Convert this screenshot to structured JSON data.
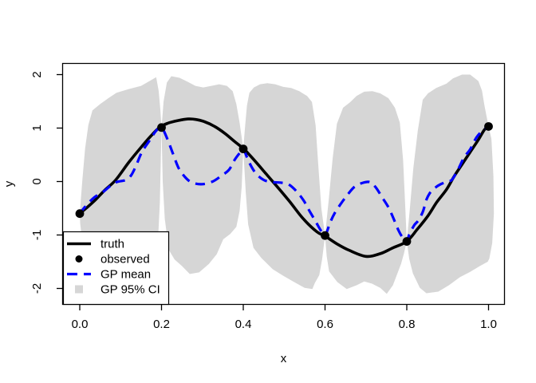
{
  "chart_data": {
    "type": "line",
    "title": "",
    "xlabel": "x",
    "ylabel": "y",
    "xlim": [
      -0.043,
      1.039
    ],
    "ylim": [
      -2.31,
      2.22
    ],
    "grid": false,
    "box": true,
    "x_ticks": {
      "values": [
        0.0,
        0.2,
        0.4,
        0.6,
        0.8,
        1.0
      ],
      "labels": [
        "0.0",
        "0.2",
        "0.4",
        "0.6",
        "0.8",
        "1.0"
      ]
    },
    "y_ticks": {
      "values": [
        -2,
        -1,
        0,
        1,
        2
      ],
      "labels": [
        "-2",
        "-1",
        "0",
        "1",
        "2"
      ]
    },
    "colors": {
      "truth": "#000000",
      "observed": "#000000",
      "gp_mean": "#0000ff",
      "gp_ci": "#d6d6d6",
      "axis": "#000000",
      "background": "#ffffff"
    },
    "legend": {
      "position": "bottom-left",
      "items": [
        {
          "label": "truth",
          "marker": "solid-line",
          "color": "#000000"
        },
        {
          "label": "observed",
          "marker": "point",
          "color": "#000000"
        },
        {
          "label": "GP mean",
          "marker": "dashed-line",
          "color": "#0000ff"
        },
        {
          "label": "GP 95% CI",
          "marker": "filled-square",
          "color": "#d6d6d6"
        }
      ]
    },
    "series": [
      {
        "name": "GP 95% CI",
        "type": "band",
        "color": "#d6d6d6",
        "polygon_x": [
          0.0,
          0.006,
          0.013,
          0.021,
          0.031,
          0.05,
          0.07,
          0.09,
          0.12,
          0.15,
          0.171,
          0.187,
          0.193,
          0.197,
          0.2,
          0.205,
          0.213,
          0.224,
          0.244,
          0.263,
          0.283,
          0.302,
          0.322,
          0.341,
          0.36,
          0.374,
          0.383,
          0.391,
          0.4,
          0.404,
          0.409,
          0.415,
          0.426,
          0.441,
          0.459,
          0.478,
          0.498,
          0.517,
          0.537,
          0.556,
          0.568,
          0.577,
          0.584,
          0.591,
          0.6,
          0.609,
          0.619,
          0.629,
          0.644,
          0.661,
          0.677,
          0.696,
          0.716,
          0.735,
          0.755,
          0.771,
          0.783,
          0.791,
          0.796,
          0.8,
          0.807,
          0.816,
          0.827,
          0.839,
          0.852,
          0.872,
          0.897,
          0.913,
          0.935,
          0.955,
          0.975,
          0.984,
          0.99,
          1.0,
          1.007,
          1.012,
          1.013,
          1.009,
          1.002,
          0.998,
          0.979,
          0.955,
          0.93,
          0.903,
          0.877,
          0.848,
          0.832,
          0.815,
          0.806,
          0.8,
          0.793,
          0.786,
          0.766,
          0.751,
          0.735,
          0.715,
          0.696,
          0.677,
          0.653,
          0.63,
          0.61,
          0.604,
          0.6,
          0.593,
          0.586,
          0.575,
          0.569,
          0.55,
          0.522,
          0.497,
          0.472,
          0.444,
          0.425,
          0.412,
          0.406,
          0.4,
          0.396,
          0.391,
          0.383,
          0.368,
          0.351,
          0.335,
          0.316,
          0.292,
          0.269,
          0.25,
          0.232,
          0.218,
          0.208,
          0.203,
          0.2,
          0.196,
          0.192,
          0.186,
          0.178,
          0.166,
          0.15,
          0.12,
          0.085,
          0.05,
          0.025,
          0.012,
          0.005,
          0.001
        ],
        "polygon_y": [
          -0.6,
          0.0,
          0.62,
          1.06,
          1.33,
          1.45,
          1.56,
          1.66,
          1.73,
          1.79,
          1.88,
          1.95,
          1.7,
          1.35,
          1.0,
          1.5,
          1.85,
          1.97,
          1.94,
          1.87,
          1.79,
          1.76,
          1.79,
          1.82,
          1.79,
          1.69,
          1.45,
          1.1,
          0.61,
          1.0,
          1.42,
          1.66,
          1.76,
          1.82,
          1.84,
          1.82,
          1.77,
          1.75,
          1.69,
          1.6,
          1.49,
          1.05,
          0.25,
          -0.5,
          -1.01,
          -0.35,
          0.45,
          1.08,
          1.38,
          1.48,
          1.6,
          1.68,
          1.69,
          1.65,
          1.56,
          1.38,
          1.1,
          0.4,
          -0.45,
          -1.12,
          -0.55,
          0.25,
          0.95,
          1.53,
          1.65,
          1.75,
          1.83,
          1.93,
          2.0,
          2.0,
          1.88,
          1.7,
          1.42,
          1.03,
          0.8,
          0.1,
          -0.6,
          -1.15,
          -1.44,
          -1.5,
          -1.58,
          -1.69,
          -1.79,
          -1.94,
          -2.06,
          -2.09,
          -1.99,
          -1.72,
          -1.45,
          -1.12,
          -1.35,
          -1.54,
          -1.94,
          -2.1,
          -1.99,
          -1.91,
          -1.87,
          -1.94,
          -2.01,
          -1.88,
          -1.68,
          -1.4,
          -1.01,
          -1.45,
          -1.75,
          -1.9,
          -2.01,
          -1.99,
          -1.87,
          -1.76,
          -1.64,
          -1.43,
          -1.24,
          -0.8,
          -0.2,
          0.61,
          -0.1,
          -0.55,
          -0.85,
          -0.98,
          -1.08,
          -1.36,
          -1.54,
          -1.7,
          -1.73,
          -1.58,
          -1.46,
          -1.28,
          -0.7,
          0.0,
          1.0,
          -0.4,
          -1.0,
          -1.35,
          -1.6,
          -1.76,
          -1.88,
          -1.96,
          -1.97,
          -1.93,
          -1.85,
          -1.58,
          -1.05,
          -0.78
        ]
      },
      {
        "name": "truth",
        "type": "line",
        "style": "solid",
        "color": "#000000",
        "line_width": 3.6,
        "x": [
          0.0,
          0.02,
          0.04,
          0.06,
          0.088,
          0.12,
          0.15,
          0.175,
          0.195,
          0.215,
          0.24,
          0.265,
          0.285,
          0.305,
          0.33,
          0.355,
          0.38,
          0.4,
          0.415,
          0.435,
          0.455,
          0.48,
          0.513,
          0.546,
          0.58,
          0.6,
          0.63,
          0.66,
          0.7,
          0.735,
          0.766,
          0.8,
          0.825,
          0.852,
          0.873,
          0.897,
          0.916,
          0.936,
          0.955,
          0.975,
          0.99,
          1.0
        ],
        "y": [
          -0.6,
          -0.47,
          -0.33,
          -0.17,
          0.03,
          0.36,
          0.64,
          0.86,
          1.01,
          1.09,
          1.14,
          1.17,
          1.16,
          1.12,
          1.03,
          0.9,
          0.74,
          0.62,
          0.5,
          0.33,
          0.15,
          -0.07,
          -0.37,
          -0.69,
          -0.94,
          -1.02,
          -1.17,
          -1.29,
          -1.4,
          -1.35,
          -1.24,
          -1.12,
          -0.9,
          -0.64,
          -0.39,
          -0.15,
          0.1,
          0.33,
          0.55,
          0.78,
          0.97,
          1.03
        ]
      },
      {
        "name": "GP mean",
        "type": "line",
        "style": "dashed",
        "color": "#0000ff",
        "line_width": 3.2,
        "dash": [
          12,
          8
        ],
        "x": [
          0.0,
          0.012,
          0.035,
          0.058,
          0.075,
          0.09,
          0.113,
          0.126,
          0.138,
          0.152,
          0.172,
          0.187,
          0.2,
          0.214,
          0.228,
          0.242,
          0.258,
          0.275,
          0.3,
          0.325,
          0.345,
          0.365,
          0.38,
          0.392,
          0.4,
          0.413,
          0.43,
          0.45,
          0.47,
          0.49,
          0.51,
          0.53,
          0.548,
          0.562,
          0.578,
          0.59,
          0.6,
          0.612,
          0.623,
          0.642,
          0.658,
          0.672,
          0.69,
          0.71,
          0.725,
          0.74,
          0.755,
          0.768,
          0.78,
          0.79,
          0.8,
          0.806,
          0.818,
          0.829,
          0.84,
          0.848,
          0.856,
          0.866,
          0.878,
          0.895,
          0.91,
          0.925,
          0.94,
          0.955,
          0.97,
          0.985,
          1.0
        ],
        "y": [
          -0.6,
          -0.48,
          -0.3,
          -0.19,
          -0.08,
          -0.01,
          0.03,
          0.12,
          0.3,
          0.55,
          0.78,
          0.95,
          1.01,
          0.8,
          0.52,
          0.25,
          0.08,
          -0.02,
          -0.05,
          0.0,
          0.1,
          0.22,
          0.42,
          0.54,
          0.61,
          0.38,
          0.16,
          0.03,
          -0.01,
          -0.02,
          -0.05,
          -0.18,
          -0.36,
          -0.55,
          -0.76,
          -0.92,
          -1.01,
          -0.78,
          -0.6,
          -0.38,
          -0.22,
          -0.1,
          -0.03,
          -0.01,
          -0.12,
          -0.3,
          -0.48,
          -0.7,
          -0.92,
          -1.05,
          -1.13,
          -0.99,
          -0.82,
          -0.72,
          -0.55,
          -0.34,
          -0.22,
          -0.14,
          -0.07,
          -0.01,
          0.03,
          0.22,
          0.45,
          0.6,
          0.82,
          0.95,
          1.03
        ]
      },
      {
        "name": "observed",
        "type": "scatter",
        "color": "#000000",
        "point_radius": 5.4,
        "x": [
          0.0,
          0.2,
          0.4,
          0.6,
          0.8,
          1.0
        ],
        "y": [
          -0.6,
          1.01,
          0.61,
          -1.01,
          -1.12,
          1.03
        ]
      }
    ]
  }
}
